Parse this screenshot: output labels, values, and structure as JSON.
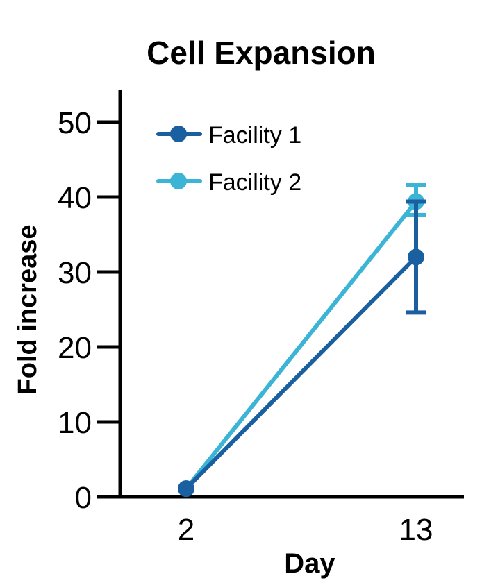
{
  "chart_data": {
    "type": "line",
    "title": "Cell Expansion",
    "xlabel": "Day",
    "ylabel": "Fold increase",
    "categories": [
      "2",
      "13"
    ],
    "x": [
      2,
      13
    ],
    "ylim": [
      0,
      50
    ],
    "yticks": [
      0,
      10,
      20,
      30,
      40,
      50
    ],
    "grid": false,
    "legend_position": "upper left",
    "series": [
      {
        "name": "Facility 1",
        "color": "#1a5fa0",
        "values": [
          1.1,
          32.0
        ],
        "error_low": [
          1.1,
          24.6
        ],
        "error_high": [
          1.1,
          39.4
        ]
      },
      {
        "name": "Facility 2",
        "color": "#3bb4d6",
        "values": [
          1.1,
          39.4
        ],
        "error_low": [
          1.1,
          37.6
        ],
        "error_high": [
          1.1,
          41.6
        ]
      }
    ]
  }
}
